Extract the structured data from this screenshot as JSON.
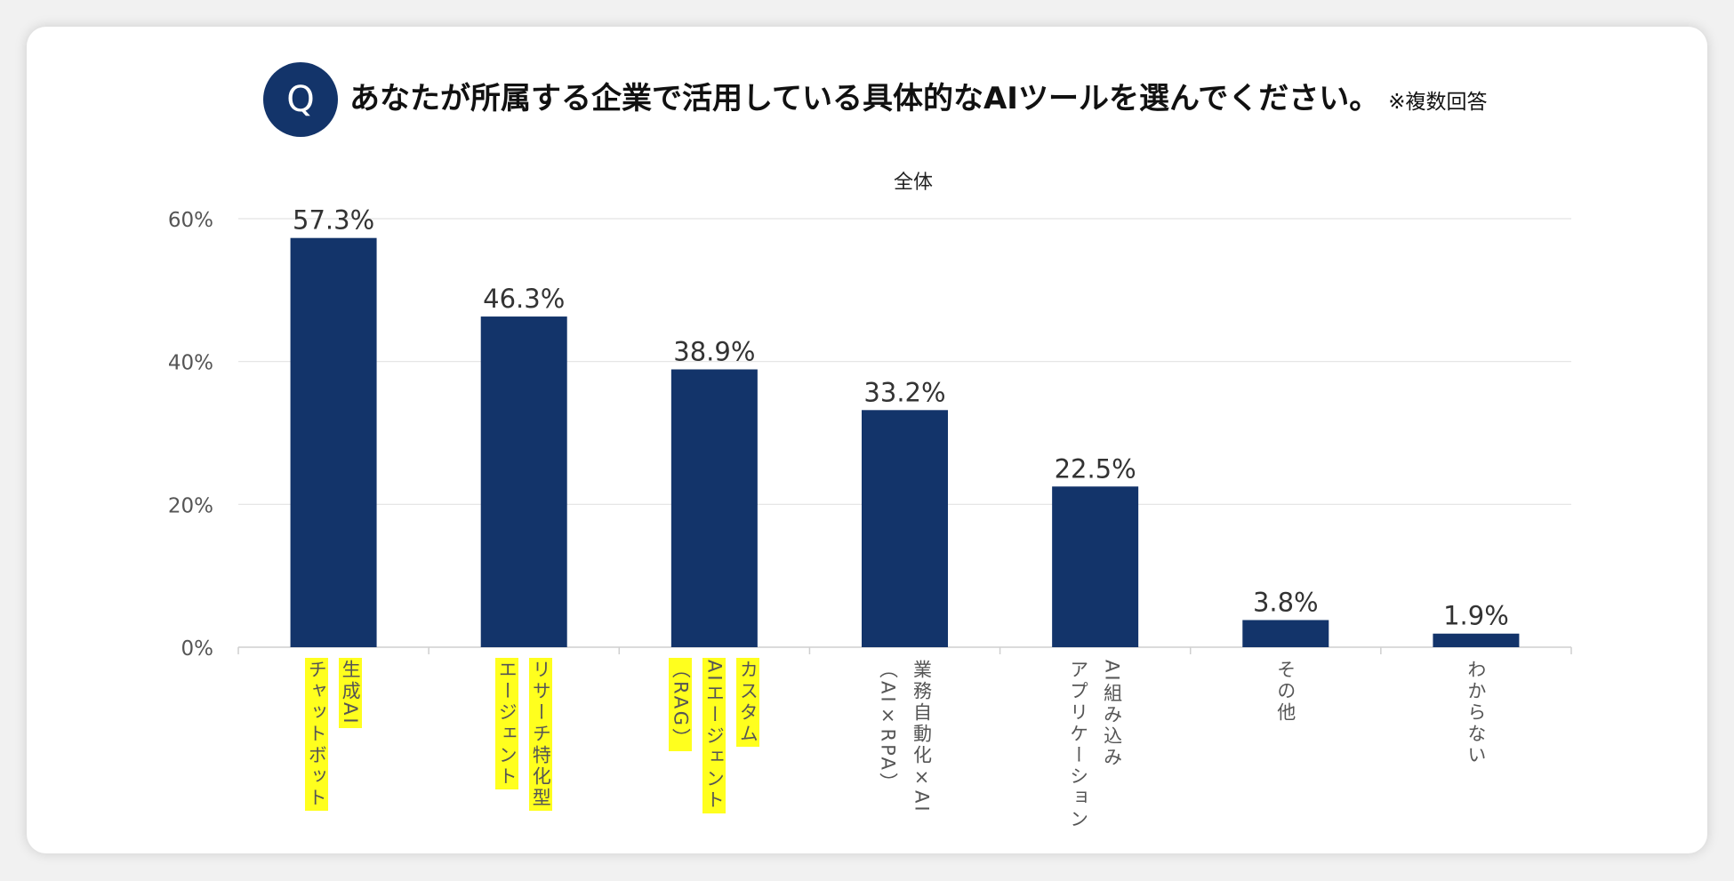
{
  "question": {
    "badge": "Q",
    "text": "あなたが所属する企業で活用している具体的なAIツールを選んでください。",
    "note": "※複数回答"
  },
  "colors": {
    "bar": "#13346a",
    "highlight": "#ffff1e",
    "badge": "#13346a"
  },
  "chart_data": {
    "type": "bar",
    "title": "全体",
    "xlabel": "",
    "ylabel": "",
    "ylim": [
      0,
      60
    ],
    "yticks": [
      0,
      20,
      40,
      60
    ],
    "ytick_labels": [
      "0%",
      "20%",
      "40%",
      "60%"
    ],
    "grid": true,
    "categories": [
      {
        "lines": [
          "生成AI",
          "チャットボット"
        ],
        "highlight": true
      },
      {
        "lines": [
          "リサーチ特化型",
          "エージェント"
        ],
        "highlight": true
      },
      {
        "lines": [
          "カスタム",
          "AIエージェント",
          "（RAG）"
        ],
        "highlight": true
      },
      {
        "lines": [
          "業務自動化×AI",
          "（AI×RPA）"
        ],
        "highlight": false
      },
      {
        "lines": [
          "AI組み込み",
          "アプリケーション"
        ],
        "highlight": false
      },
      {
        "lines": [
          "その他"
        ],
        "highlight": false
      },
      {
        "lines": [
          "わからない"
        ],
        "highlight": false
      }
    ],
    "values": [
      57.3,
      46.3,
      38.9,
      33.2,
      22.5,
      3.8,
      1.9
    ],
    "data_labels": [
      "57.3%",
      "46.3%",
      "38.9%",
      "33.2%",
      "22.5%",
      "3.8%",
      "1.9%"
    ]
  }
}
